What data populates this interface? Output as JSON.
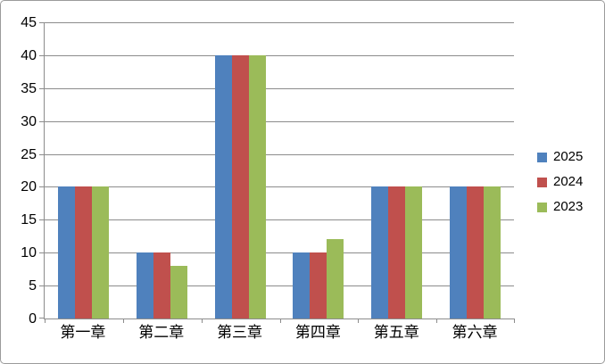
{
  "chart_data": {
    "type": "bar",
    "title": "",
    "xlabel": "",
    "ylabel": "",
    "categories": [
      "第一章",
      "第二章",
      "第三章",
      "第四章",
      "第五章",
      "第六章"
    ],
    "series": [
      {
        "name": "2025",
        "color": "#4F81BD",
        "values": [
          20,
          10,
          40,
          10,
          20,
          20
        ]
      },
      {
        "name": "2024",
        "color": "#C0504D",
        "values": [
          20,
          10,
          40,
          10,
          20,
          20
        ]
      },
      {
        "name": "2023",
        "color": "#9BBB59",
        "values": [
          20,
          8,
          40,
          12,
          20,
          20
        ]
      }
    ],
    "ylim": [
      0,
      45
    ],
    "yticks": [
      0,
      5,
      10,
      15,
      20,
      25,
      30,
      35,
      40,
      45
    ],
    "grid": true,
    "legend_position": "right"
  },
  "colors": {
    "gridline": "#8c8c8c",
    "axis": "#8c8c8c",
    "frame_border": "#9b9b9b",
    "background": "#ffffff",
    "text": "#000000"
  }
}
